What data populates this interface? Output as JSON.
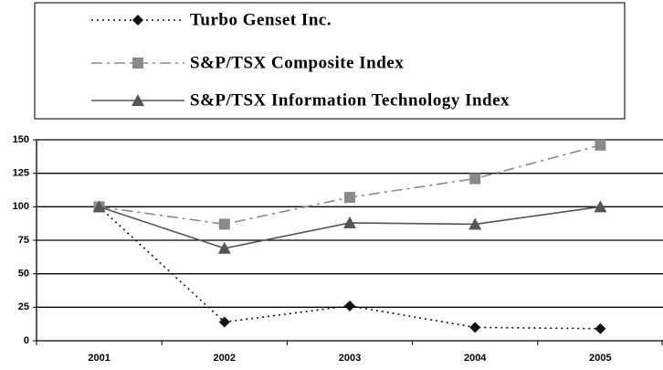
{
  "chart_data": {
    "type": "line",
    "categories": [
      "2001",
      "2002",
      "2003",
      "2004",
      "2005"
    ],
    "series": [
      {
        "name": "Turbo Genset Inc.",
        "color": "#111111",
        "line_style": "dotted",
        "marker": "diamond",
        "values": [
          100,
          14,
          26,
          10,
          9
        ]
      },
      {
        "name": "S&P/TSX Composite Index",
        "color": "#8a8a8a",
        "line_style": "dashdot",
        "marker": "square",
        "values": [
          100,
          87,
          107,
          121,
          146
        ]
      },
      {
        "name": "S&P/TSX Information Technology Index",
        "color": "#555555",
        "line_style": "solid",
        "marker": "triangle",
        "values": [
          100,
          69,
          88,
          87,
          100
        ]
      }
    ],
    "ylim": [
      0,
      150
    ],
    "yticks": [
      0,
      25,
      50,
      75,
      100,
      125,
      150
    ],
    "grid": true,
    "legend": "top"
  }
}
